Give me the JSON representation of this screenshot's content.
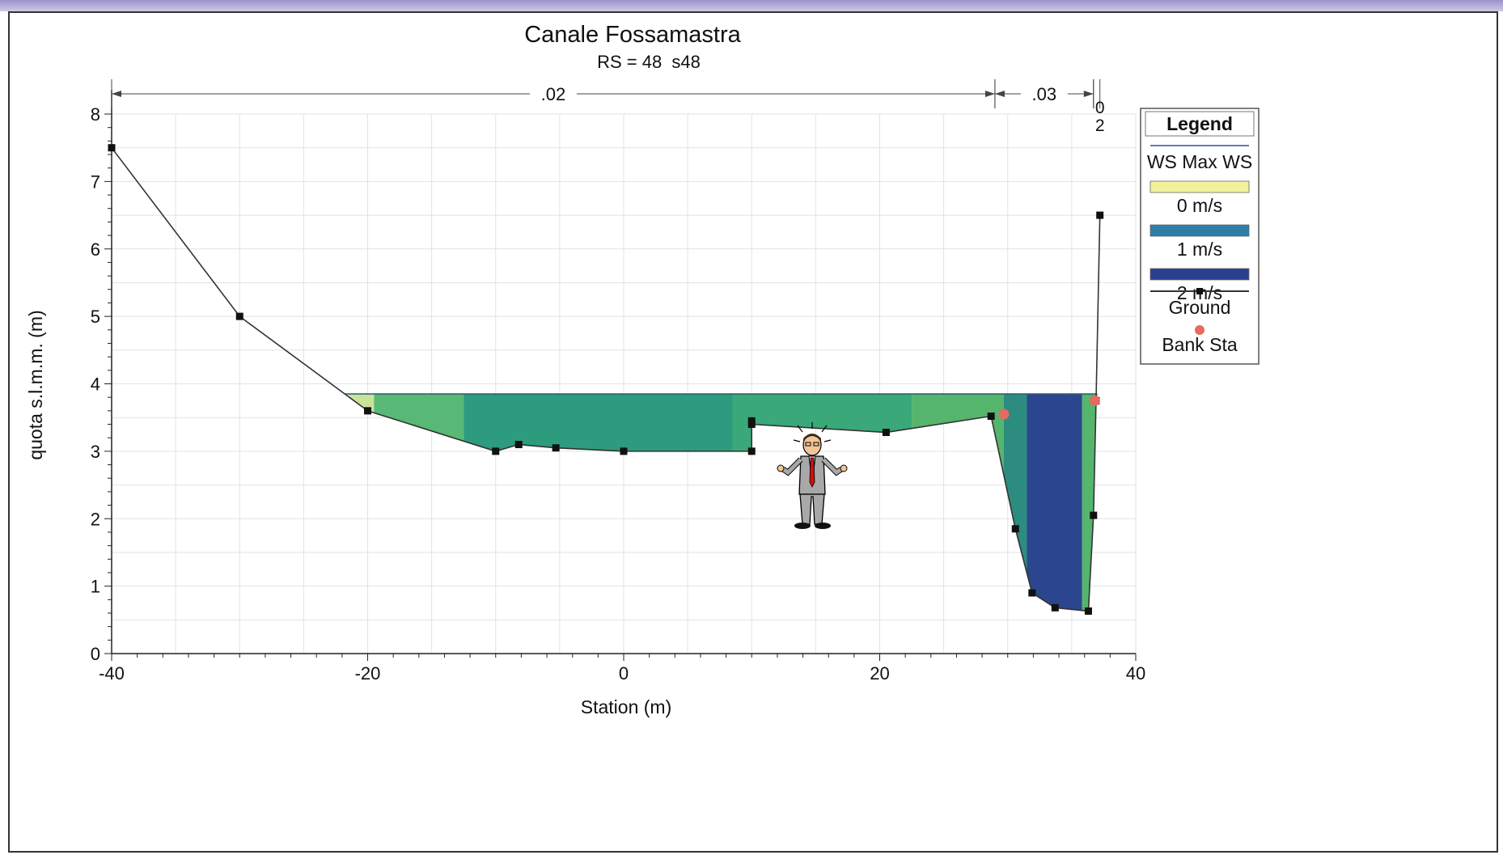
{
  "chart_data": {
    "type": "area",
    "title": "Canale Fossamastra",
    "subtitle": "RS = 48  s48",
    "xlabel": "Station (m)",
    "ylabel": "quota s.l.m.m. (m)",
    "xlim": [
      -40,
      40
    ],
    "ylim": [
      0,
      8
    ],
    "x_ticks": [
      "-40",
      "-20",
      "0",
      "20",
      "40"
    ],
    "y_ticks": [
      "0",
      "1",
      "2",
      "3",
      "4",
      "5",
      "6",
      "7",
      "8"
    ],
    "grid": true,
    "legend_position": "right",
    "water_surface": 3.85,
    "ground": {
      "name": "Ground",
      "x": [
        -40,
        -30,
        -20,
        -10,
        -8.2,
        -5.3,
        0,
        10,
        10,
        10,
        20.5,
        28.7,
        30.6,
        31.9,
        33.7,
        36.3,
        36.7,
        36.9,
        37.2
      ],
      "y": [
        7.5,
        5.0,
        3.6,
        3.0,
        3.1,
        3.05,
        3.0,
        3.0,
        3.45,
        3.4,
        3.28,
        3.52,
        1.85,
        0.9,
        0.68,
        0.63,
        2.05,
        3.75,
        6.5
      ]
    },
    "bank_stations": {
      "name": "Bank Sta",
      "x": [
        29.7,
        36.8
      ],
      "y": [
        3.55,
        3.75
      ]
    },
    "velocity_legend": [
      {
        "label": "0 m/s",
        "color": "#f2f29a"
      },
      {
        "label": "1 m/s",
        "color": "#2e7fa8"
      },
      {
        "label": "2 m/s",
        "color": "#2b3f8f"
      }
    ],
    "velocity_bands": [
      {
        "x0": -21.5,
        "x1": -19.5,
        "color": "#c9e39a"
      },
      {
        "x0": -19.5,
        "x1": -12.5,
        "color": "#58b876"
      },
      {
        "x0": -12.5,
        "x1": 8.5,
        "color": "#2d9b7e"
      },
      {
        "x0": 8.5,
        "x1": 22.5,
        "color": "#3aa879"
      },
      {
        "x0": 22.5,
        "x1": 29.7,
        "color": "#55b56d"
      },
      {
        "x0": 29.7,
        "x1": 31.5,
        "color": "#2c8c80"
      },
      {
        "x0": 31.5,
        "x1": 35.8,
        "color": "#2b468f"
      },
      {
        "x0": 35.8,
        "x1": 37.0,
        "color": "#55b56d"
      }
    ],
    "roughness": [
      {
        "label": ".02",
        "x0": -40,
        "x1": 29.0
      },
      {
        "label": ".03",
        "x0": 29.0,
        "x1": 36.7
      },
      {
        "label": "0\n2",
        "x0": 36.7,
        "x1": 37.2
      }
    ],
    "legend": {
      "title": "Legend",
      "ws_label": "WS Max WS",
      "ground_label": "Ground",
      "bank_label": "Bank Sta"
    }
  }
}
